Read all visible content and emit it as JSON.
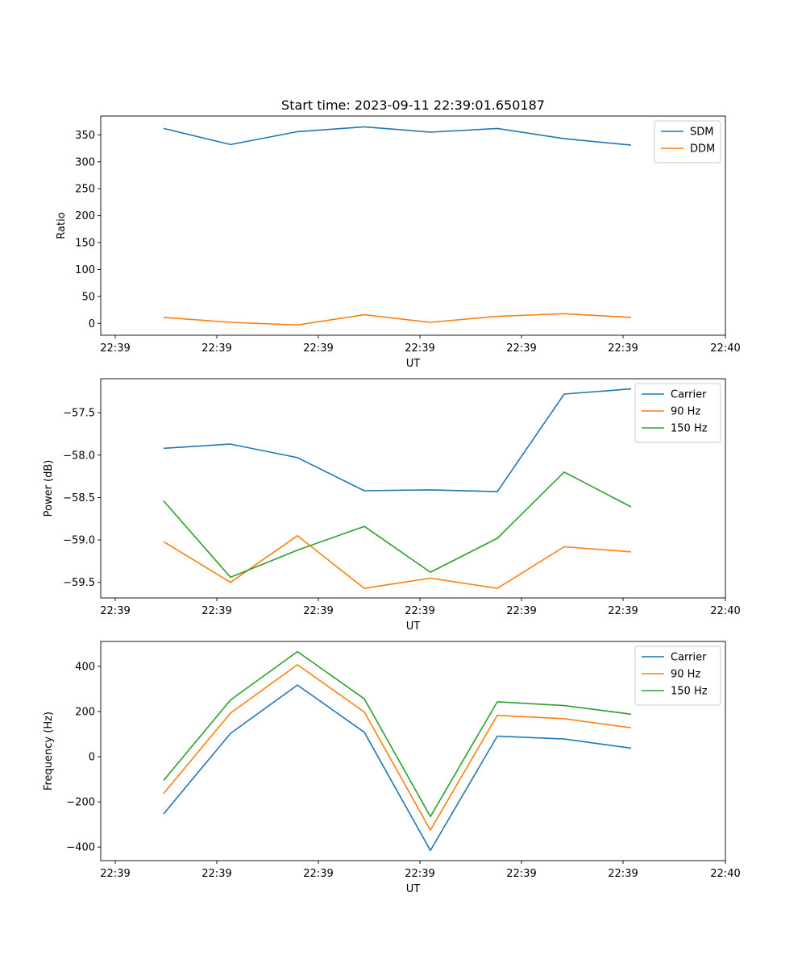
{
  "title": "Start time: 2023-09-11 22:39:01.650187",
  "chart_data": [
    {
      "type": "line",
      "title": "Start time: 2023-09-11 22:39:01.650187",
      "xlabel": "UT",
      "ylabel": "Ratio",
      "x_tick_labels": [
        "22:39",
        "22:39",
        "22:39",
        "22:39",
        "22:39",
        "22:39",
        "22:39",
        "22:40"
      ],
      "y_ticks": [
        0,
        50,
        100,
        150,
        200,
        250,
        300,
        350
      ],
      "y_tick_labels": [
        "0",
        "50",
        "100",
        "150",
        "200",
        "250",
        "300",
        "350"
      ],
      "ylim": [
        -22,
        385
      ],
      "legend_position": "top-right",
      "series": [
        {
          "name": "SDM",
          "color": "#1f77b4",
          "values": [
            362,
            332,
            356,
            365,
            355,
            362,
            343,
            331
          ]
        },
        {
          "name": "DDM",
          "color": "#ff7f0e",
          "values": [
            11,
            2,
            -3,
            16,
            2,
            13,
            18,
            11
          ]
        }
      ]
    },
    {
      "type": "line",
      "title": "",
      "xlabel": "UT",
      "ylabel": "Power (dB)",
      "x_tick_labels": [
        "22:39",
        "22:39",
        "22:39",
        "22:39",
        "22:39",
        "22:39",
        "22:39",
        "22:40"
      ],
      "y_ticks": [
        -59.5,
        -59.0,
        -58.5,
        -58.0,
        -57.5
      ],
      "y_tick_labels": [
        "−59.5",
        "−59.0",
        "−58.5",
        "−58.0",
        "−57.5"
      ],
      "ylim": [
        -59.683,
        -57.1
      ],
      "legend_position": "top-right",
      "series": [
        {
          "name": "Carrier",
          "color": "#1f77b4",
          "values": [
            -57.92,
            -57.87,
            -58.03,
            -58.42,
            -58.41,
            -58.43,
            -57.28,
            -57.22
          ]
        },
        {
          "name": "90 Hz",
          "color": "#ff7f0e",
          "values": [
            -59.02,
            -59.5,
            -58.95,
            -59.57,
            -59.45,
            -59.57,
            -59.08,
            -59.14
          ]
        },
        {
          "name": "150 Hz",
          "color": "#2ca02c",
          "values": [
            -58.54,
            -59.44,
            -59.12,
            -58.84,
            -59.38,
            -58.98,
            -58.2,
            -58.61
          ]
        }
      ]
    },
    {
      "type": "line",
      "title": "",
      "xlabel": "UT",
      "ylabel": "Frequency (Hz)",
      "x_tick_labels": [
        "22:39",
        "22:39",
        "22:39",
        "22:39",
        "22:39",
        "22:39",
        "22:39",
        "22:40"
      ],
      "y_ticks": [
        -400,
        -200,
        0,
        200,
        400
      ],
      "y_tick_labels": [
        "−400",
        "−200",
        "0",
        "200",
        "400"
      ],
      "ylim": [
        -460,
        510
      ],
      "legend_position": "top-right",
      "series": [
        {
          "name": "Carrier",
          "color": "#1f77b4",
          "values": [
            -253,
            103,
            317,
            108,
            -415,
            91,
            78,
            38
          ]
        },
        {
          "name": "90 Hz",
          "color": "#ff7f0e",
          "values": [
            -163,
            193,
            407,
            198,
            -325,
            183,
            168,
            128
          ]
        },
        {
          "name": "150 Hz",
          "color": "#2ca02c",
          "values": [
            -105,
            251,
            465,
            256,
            -265,
            243,
            226,
            188
          ]
        }
      ]
    }
  ]
}
